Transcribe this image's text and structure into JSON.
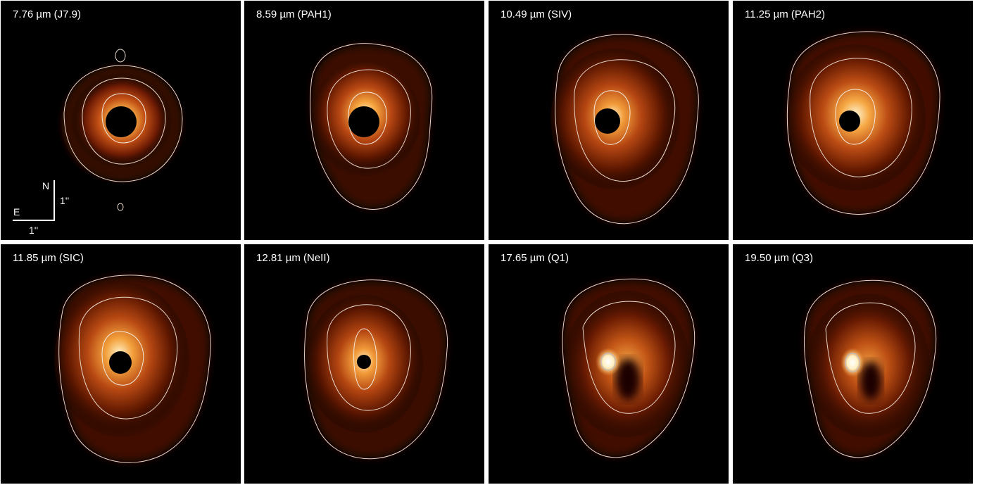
{
  "panels": [
    {
      "label": "7.76 µm (J7.9)",
      "occulter": "black-disk",
      "compass": true
    },
    {
      "label": "8.59 µm (PAH1)",
      "occulter": "black-disk",
      "compass": false
    },
    {
      "label": "10.49 µm (SIV)",
      "occulter": "black-disk",
      "compass": false
    },
    {
      "label": "11.25 µm (PAH2)",
      "occulter": "black-disk",
      "compass": false
    },
    {
      "label": "11.85 µm (SIC)",
      "occulter": "black-disk",
      "compass": false
    },
    {
      "label": "12.81 µm (NeII)",
      "occulter": "black-disk",
      "compass": false
    },
    {
      "label": "17.65 µm (Q1)",
      "occulter": "none",
      "compass": false
    },
    {
      "label": "19.50 µm (Q3)",
      "occulter": "none",
      "compass": false
    }
  ],
  "compass": {
    "north": "N",
    "east": "E",
    "scale_vertical": "1''",
    "scale_horizontal": "1''"
  },
  "colors": {
    "background": "#000000",
    "divider": "#ffffff",
    "emission_outer": "#5e1700",
    "emission_mid": "#b64a12",
    "emission_bright": "#f3a23e",
    "emission_peak": "#fff4cf",
    "contour": "#e9d7c9",
    "text": "#ffffff"
  }
}
